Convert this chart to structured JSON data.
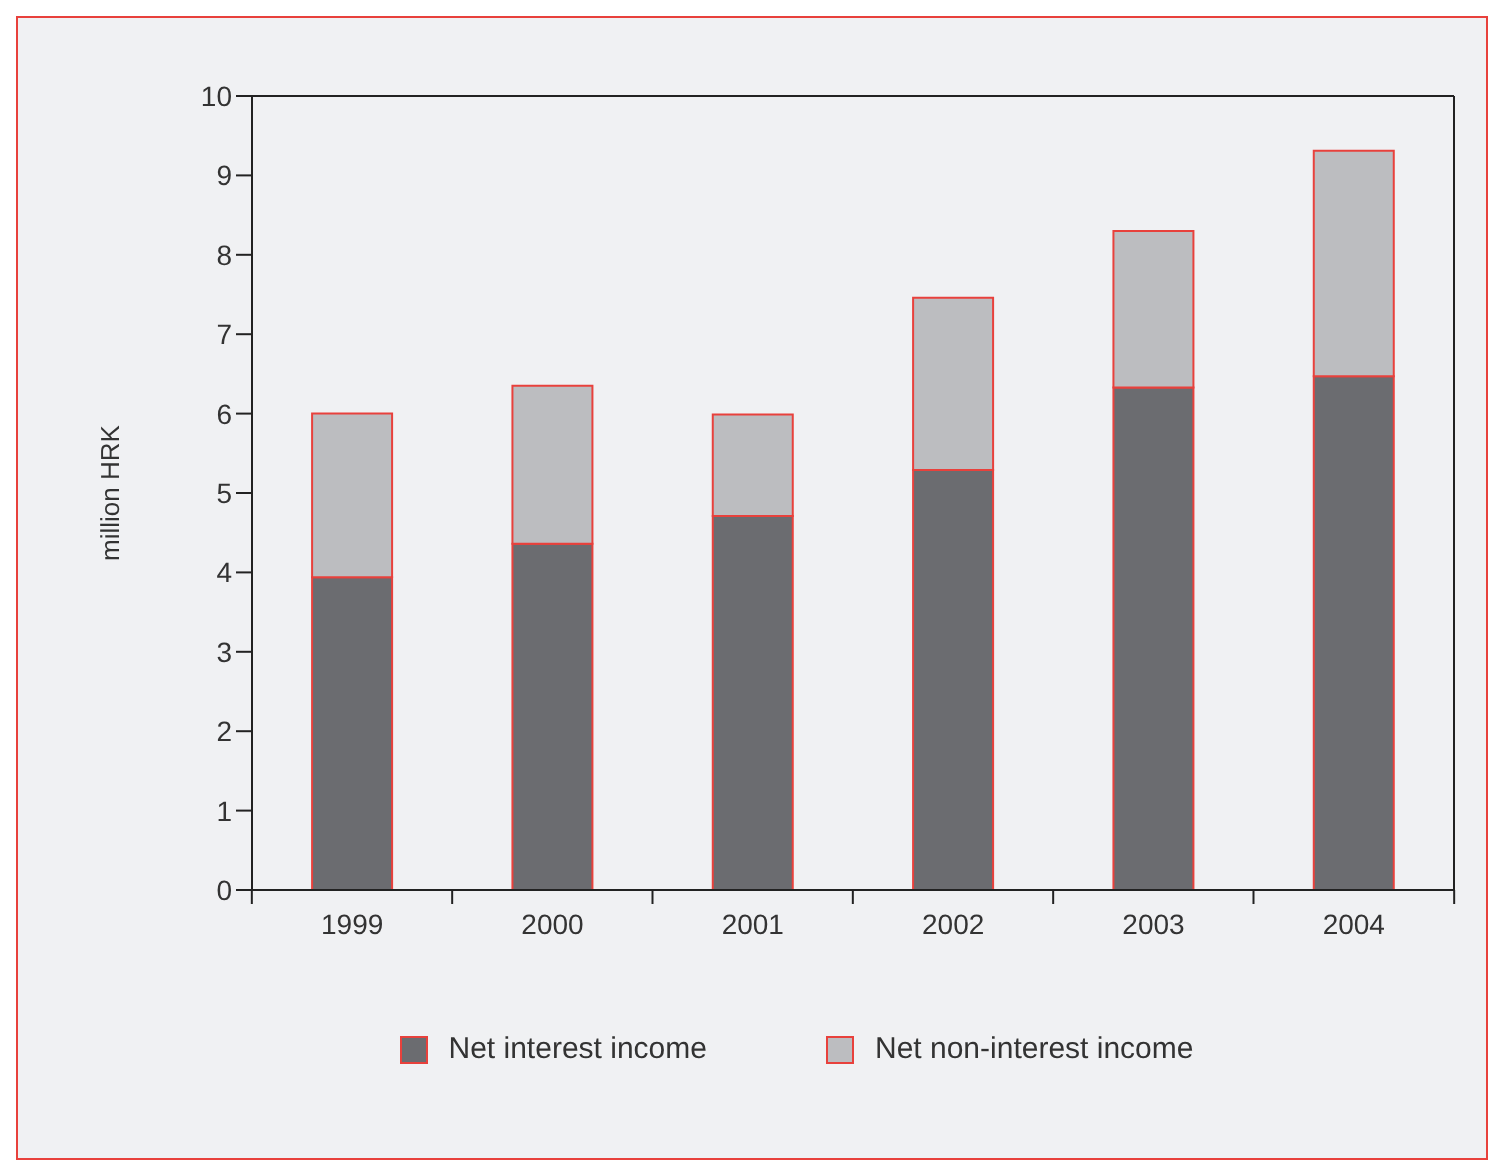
{
  "chart_data": {
    "type": "bar",
    "ylabel": "million HRK",
    "categories": [
      "1999",
      "2000",
      "2001",
      "2002",
      "2003",
      "2004"
    ],
    "stacked": true,
    "series": [
      {
        "name": "Net interest income",
        "color": "#6b6c70",
        "values": [
          3.94,
          4.36,
          4.71,
          5.29,
          6.33,
          6.47
        ]
      },
      {
        "name": "Net non-interest income",
        "color": "#bcbdc0",
        "values": [
          2.06,
          1.99,
          1.28,
          2.17,
          1.97,
          2.84
        ]
      }
    ],
    "ylim": [
      0,
      10
    ],
    "yticks": [
      0,
      1,
      2,
      3,
      4,
      5,
      6,
      7,
      8,
      9,
      10
    ],
    "grid": false,
    "legend": "bottom"
  }
}
